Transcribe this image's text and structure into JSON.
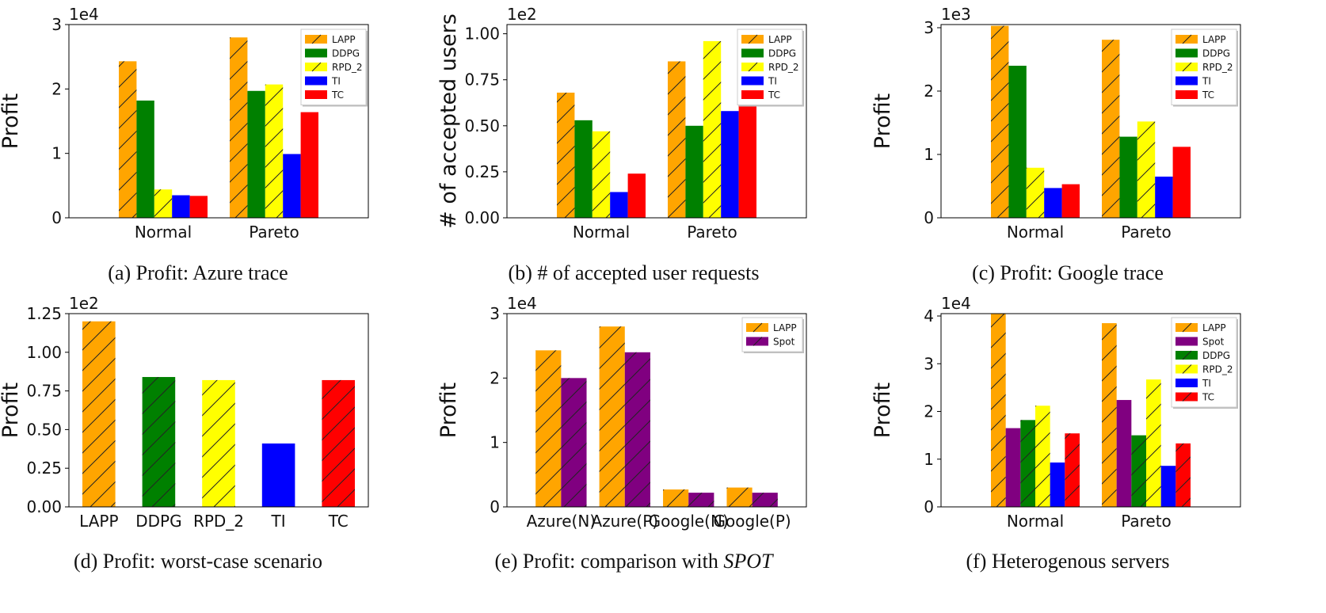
{
  "colors": {
    "LAPP": "#FFA500",
    "DDPG": "#008000",
    "RPD_2": "#FFFF00",
    "TI": "#0000FF",
    "TC": "#FF0000",
    "Spot": "#800080"
  },
  "chart_data": [
    {
      "type": "bar",
      "caption": "(a) Profit: Azure trace",
      "ylabel": "Profit",
      "exponent": "1e4",
      "ylim": [
        0,
        3
      ],
      "yticks": [
        0,
        1,
        2,
        3
      ],
      "ytick_labels": [
        "0",
        "1",
        "2",
        "3"
      ],
      "categories": [
        "Normal",
        "Pareto"
      ],
      "series": [
        {
          "name": "LAPP",
          "values": [
            2.43,
            2.8
          ],
          "hatch": true
        },
        {
          "name": "DDPG",
          "values": [
            1.82,
            1.97
          ],
          "hatch": false
        },
        {
          "name": "RPD_2",
          "values": [
            0.44,
            2.07
          ],
          "hatch": true
        },
        {
          "name": "TI",
          "values": [
            0.35,
            0.99
          ],
          "hatch": false
        },
        {
          "name": "TC",
          "values": [
            0.34,
            1.64
          ],
          "hatch": false
        }
      ]
    },
    {
      "type": "bar",
      "caption": "(b) # of accepted user requests",
      "ylabel": "# of accepted users",
      "exponent": "1e2",
      "ylim": [
        0,
        1.05
      ],
      "yticks": [
        0,
        0.25,
        0.5,
        0.75,
        1.0
      ],
      "ytick_labels": [
        "0.00",
        "0.25",
        "0.50",
        "0.75",
        "1.00"
      ],
      "categories": [
        "Normal",
        "Pareto"
      ],
      "series": [
        {
          "name": "LAPP",
          "values": [
            0.68,
            0.85
          ],
          "hatch": true
        },
        {
          "name": "DDPG",
          "values": [
            0.53,
            0.5
          ],
          "hatch": false
        },
        {
          "name": "RPD_2",
          "values": [
            0.47,
            0.96
          ],
          "hatch": true
        },
        {
          "name": "TI",
          "values": [
            0.14,
            0.58
          ],
          "hatch": false
        },
        {
          "name": "TC",
          "values": [
            0.24,
            0.61
          ],
          "hatch": false
        }
      ]
    },
    {
      "type": "bar",
      "caption": "(c) Profit: Google trace",
      "ylabel": "Profit",
      "exponent": "1e3",
      "ylim": [
        0,
        3.05
      ],
      "yticks": [
        0,
        1,
        2,
        3
      ],
      "ytick_labels": [
        "0",
        "1",
        "2",
        "3"
      ],
      "categories": [
        "Normal",
        "Pareto"
      ],
      "series": [
        {
          "name": "LAPP",
          "values": [
            3.03,
            2.81
          ],
          "hatch": true
        },
        {
          "name": "DDPG",
          "values": [
            2.4,
            1.28
          ],
          "hatch": false
        },
        {
          "name": "RPD_2",
          "values": [
            0.79,
            1.52
          ],
          "hatch": true
        },
        {
          "name": "TI",
          "values": [
            0.47,
            0.65
          ],
          "hatch": false
        },
        {
          "name": "TC",
          "values": [
            0.53,
            1.12
          ],
          "hatch": false
        }
      ]
    },
    {
      "type": "bar",
      "caption": "(d) Profit: worst-case scenario",
      "ylabel": "Profit",
      "exponent": "1e2",
      "ylim": [
        0,
        1.25
      ],
      "yticks": [
        0,
        0.25,
        0.5,
        0.75,
        1.0,
        1.25
      ],
      "ytick_labels": [
        "0.00",
        "0.25",
        "0.50",
        "0.75",
        "1.00",
        "1.25"
      ],
      "categories": [
        "LAPP",
        "DDPG",
        "RPD_2",
        "TI",
        "TC"
      ],
      "values": [
        1.2,
        0.84,
        0.82,
        0.41,
        0.82
      ],
      "bar_series": [
        "LAPP",
        "DDPG",
        "RPD_2",
        "TI",
        "TC"
      ],
      "hatches": [
        true,
        true,
        true,
        false,
        true
      ]
    },
    {
      "type": "bar",
      "caption": "(e) Profit: comparison with ",
      "caption_em": "SPOT",
      "ylabel": "Profit",
      "exponent": "1e4",
      "ylim": [
        0,
        3
      ],
      "yticks": [
        0,
        1,
        2,
        3
      ],
      "ytick_labels": [
        "0",
        "1",
        "2",
        "3"
      ],
      "categories": [
        "Azure(N)",
        "Azure(P)",
        "Google(N)",
        "Google(P)"
      ],
      "series": [
        {
          "name": "LAPP",
          "values": [
            2.43,
            2.8,
            0.27,
            0.3
          ],
          "hatch": true
        },
        {
          "name": "Spot",
          "values": [
            2.0,
            2.4,
            0.22,
            0.22
          ],
          "hatch": true
        }
      ]
    },
    {
      "type": "bar",
      "caption": "(f) Heterogenous servers",
      "ylabel": "Profit",
      "exponent": "1e4",
      "ylim": [
        0,
        4.05
      ],
      "yticks": [
        0,
        1,
        2,
        3,
        4
      ],
      "ytick_labels": [
        "0",
        "1",
        "2",
        "3",
        "4"
      ],
      "categories": [
        "Normal",
        "Pareto"
      ],
      "series": [
        {
          "name": "LAPP",
          "values": [
            4.05,
            3.85
          ],
          "hatch": true
        },
        {
          "name": "Spot",
          "values": [
            1.65,
            2.24
          ],
          "hatch": false
        },
        {
          "name": "DDPG",
          "values": [
            1.82,
            1.5
          ],
          "hatch": true
        },
        {
          "name": "RPD_2",
          "values": [
            2.12,
            2.67
          ],
          "hatch": true
        },
        {
          "name": "TI",
          "values": [
            0.93,
            0.86
          ],
          "hatch": false
        },
        {
          "name": "TC",
          "values": [
            1.54,
            1.33
          ],
          "hatch": true
        }
      ]
    }
  ]
}
